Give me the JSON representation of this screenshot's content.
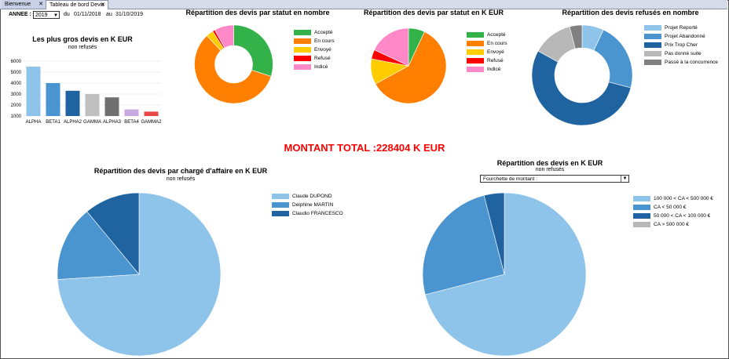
{
  "tabs": [
    {
      "label": "Bienvenue"
    },
    {
      "label": "Tableau de bord Devis"
    }
  ],
  "filters": {
    "annee_label": "ANNEE :",
    "annee_value": "2019",
    "du_label": "du",
    "date_from": "01/11/2018",
    "au_label": "au",
    "date_to": "31/10/2019"
  },
  "colors": {
    "accepte": "#33b24a",
    "en_cours": "#ff8000",
    "envoye": "#ffcc00",
    "refuse": "#ff0000",
    "indice": "#ff88c8",
    "light_blue": "#8fc4ea",
    "mid_blue": "#4a95d0",
    "dark_blue": "#1f64a0",
    "grey": "#b8b8b8",
    "dark_grey": "#808080"
  },
  "bar_chart": {
    "title": "Les plus gros devis en K EUR",
    "subtitle": "non refusés",
    "type": "bar",
    "categories": [
      "ALPHA",
      "BETA1",
      "ALPHA2",
      "GAMMA",
      "ALPHA3",
      "BETA4",
      "GAMMA2"
    ],
    "values": [
      5500,
      4000,
      3300,
      3000,
      2700,
      1600,
      1400
    ],
    "colors": [
      "#8fc4ea",
      "#4a95d0",
      "#1f64a0",
      "#c0c0c0",
      "#707070",
      "#c8a8e0",
      "#e84848"
    ],
    "yticks": [
      "6000",
      "5000",
      "4000",
      "3000",
      "2000",
      "1000"
    ],
    "ylim": [
      1000,
      6000
    ]
  },
  "donut_count": {
    "title": "Répartition des devis par statut en nombre",
    "type": "pie",
    "legend": [
      "Accepté",
      "En cours",
      "Envoyé",
      "Refusé",
      "Indicé"
    ],
    "values": [
      30,
      58,
      3,
      1,
      8
    ]
  },
  "donut_eur": {
    "title": "Répartition des devis par statut en K EUR",
    "type": "pie",
    "legend": [
      "Accepté",
      "En cours",
      "Envoyé",
      "Refusé",
      "Indicé"
    ],
    "values": [
      7,
      60,
      11,
      4,
      18
    ]
  },
  "donut_refused": {
    "title": "Répartition des devis refusés en nombre",
    "type": "pie",
    "legend": [
      "Projet Reporté",
      "Projet Abandonné",
      "Prix Trop Cher",
      "Pas donné suite",
      "Passé à la concurrence"
    ],
    "values": [
      7,
      22,
      54,
      13,
      4
    ]
  },
  "total": {
    "text": "MONTANT TOTAL :228404 K EUR"
  },
  "pie_charge": {
    "title": "Répartition des devis par chargé d'affaire en K EUR",
    "subtitle": "non refusés",
    "type": "pie",
    "legend": [
      "Claude DUPOND",
      "Delphine MARTIN",
      "Claudio FRANCESCO"
    ],
    "values": [
      74,
      15,
      11
    ]
  },
  "pie_range": {
    "title": "Répartition des devis en K EUR",
    "subtitle": "non refusés",
    "dropdown_label": "Fourchette de montant :",
    "type": "pie",
    "legend": [
      "100 000 < CA < 500 000 €",
      "CA < 50 000 €",
      "50 000 < CA < 100 000 €",
      "CA > 500 000 €"
    ],
    "values": [
      71,
      25,
      4,
      0
    ]
  }
}
